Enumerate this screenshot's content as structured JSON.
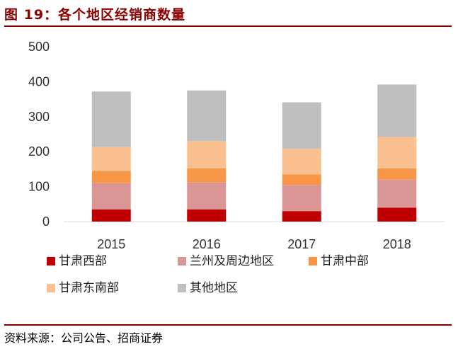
{
  "figure_title": "图 19：各个地区经销商数量",
  "source": "资料来源：公司公告、招商证券",
  "chart_data": {
    "type": "bar",
    "stacked": true,
    "title": "",
    "xlabel": "",
    "ylabel": "",
    "categories": [
      "2015",
      "2016",
      "2017",
      "2018"
    ],
    "ylim": [
      0,
      500
    ],
    "yticks": [
      "0",
      "100",
      "200",
      "300",
      "400",
      "500"
    ],
    "grid": false,
    "legend_position": "bottom",
    "series": [
      {
        "name": "甘肃西部",
        "color": "#c00000",
        "values": [
          35,
          35,
          30,
          40
        ]
      },
      {
        "name": "兰州及周边地区",
        "color": "#da9694",
        "values": [
          75,
          77,
          75,
          80
        ]
      },
      {
        "name": "甘肃中部",
        "color": "#f79646",
        "values": [
          35,
          40,
          30,
          32
        ]
      },
      {
        "name": "甘肃东南部",
        "color": "#fac090",
        "values": [
          68,
          78,
          73,
          90
        ]
      },
      {
        "name": "其他地区",
        "color": "#bfbfbf",
        "values": [
          159,
          145,
          133,
          150
        ]
      }
    ]
  }
}
